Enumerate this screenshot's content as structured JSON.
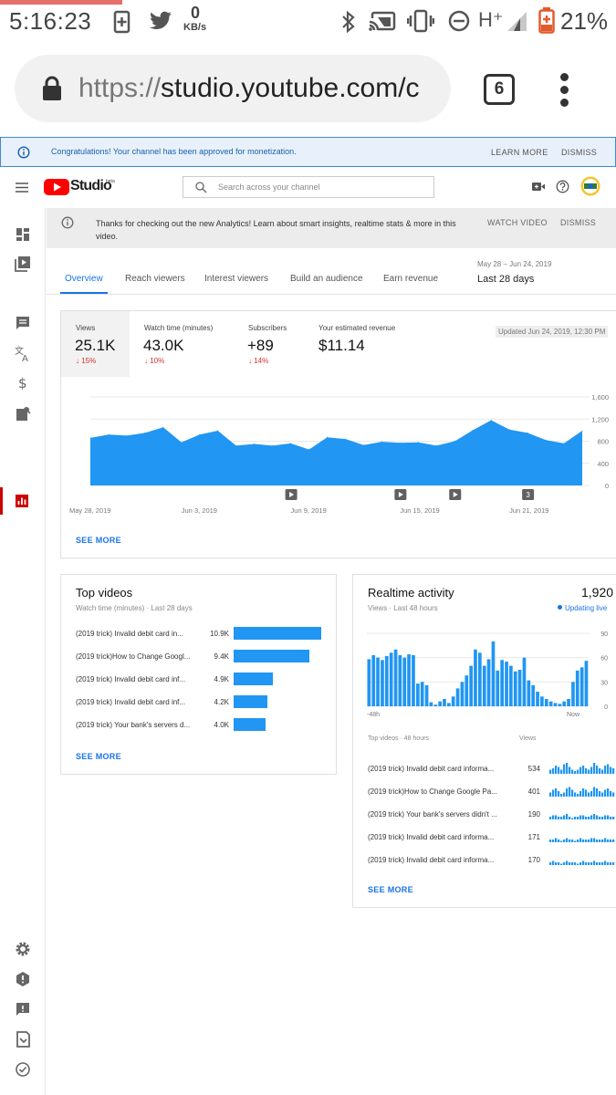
{
  "status_bar": {
    "time": "5:16:23",
    "net_speed_value": "0",
    "net_speed_unit": "KB/s",
    "network_type": "H⁺",
    "battery_percent": "21%"
  },
  "browser": {
    "url_scheme": "https://",
    "url_host": "studio.youtube.com/c",
    "tab_count": "6"
  },
  "banner": {
    "text": "Congratulations! Your channel has been approved for monetization.",
    "learn_more": "LEARN MORE",
    "dismiss": "DISMISS"
  },
  "header": {
    "logo_text": "Studio",
    "logo_badge": "beta",
    "search_placeholder": "Search across your channel"
  },
  "info_bar": {
    "text": "Thanks for checking out the new Analytics! Learn about smart insights, realtime stats & more in this video.",
    "watch_video": "WATCH VIDEO",
    "dismiss": "DISMISS"
  },
  "tabs": [
    "Overview",
    "Reach viewers",
    "Interest viewers",
    "Build an audience",
    "Earn revenue"
  ],
  "date_range": {
    "range": "May 28 – Jun 24, 2019",
    "label": "Last 28 days"
  },
  "overview": {
    "metrics": [
      {
        "label": "Views",
        "value": "25.1K",
        "change": "15%"
      },
      {
        "label": "Watch time (minutes)",
        "value": "43.0K",
        "change": "10%"
      },
      {
        "label": "Subscribers",
        "value": "+89",
        "change": "14%"
      },
      {
        "label": "Your estimated revenue",
        "value": "$11.14",
        "change": ""
      }
    ],
    "updated": "Updated Jun 24, 2019, 12:30 PM",
    "see_more": "SEE MORE",
    "marker_label": "3"
  },
  "chart_data": [
    {
      "type": "area",
      "title": "",
      "x": [
        "May 28, 2019",
        "May 29",
        "May 30",
        "May 31",
        "Jun 1",
        "Jun 2",
        "Jun 3, 2019",
        "Jun 4",
        "Jun 5",
        "Jun 6",
        "Jun 7",
        "Jun 8",
        "Jun 9, 2019",
        "Jun 10",
        "Jun 11",
        "Jun 12",
        "Jun 13",
        "Jun 14",
        "Jun 15, 2019",
        "Jun 16",
        "Jun 17",
        "Jun 18",
        "Jun 19",
        "Jun 20",
        "Jun 21, 2019",
        "Jun 22",
        "Jun 23",
        "Jun 24"
      ],
      "x_tick_labels": [
        "May 28, 2019",
        "Jun 3, 2019",
        "Jun 9, 2019",
        "Jun 15, 2019",
        "Jun 21, 2019"
      ],
      "series": [
        {
          "values": [
            860,
            920,
            900,
            950,
            1050,
            780,
            920,
            990,
            720,
            750,
            720,
            760,
            650,
            870,
            840,
            730,
            790,
            770,
            780,
            720,
            800,
            1000,
            1180,
            1010,
            950,
            820,
            760,
            990
          ]
        }
      ],
      "ylim": [
        0,
        1600
      ],
      "y_ticks": [
        "1,600",
        "1,200",
        "800",
        "400",
        "0"
      ],
      "grid": true
    },
    {
      "type": "bar",
      "title": "Top videos",
      "subtitle": "Watch time (minutes) · Last 28 days",
      "categories": [
        "(2019 trick) Invalid debit card in...",
        "(2019 trick)How to Change Googl...",
        "(2019 trick) Invalid debit card inf...",
        "(2019 trick) Invalid debit card inf...",
        "(2019 trick) Your bank's servers d..."
      ],
      "values": [
        10900,
        9400,
        4900,
        4200,
        4000
      ],
      "value_labels": [
        "10.9K",
        "9.4K",
        "4.9K",
        "4.2K",
        "4.0K"
      ]
    },
    {
      "type": "bar",
      "title": "Realtime activity",
      "subtitle": "Views · Last 48 hours",
      "values": [
        58,
        63,
        60,
        57,
        62,
        66,
        70,
        63,
        60,
        64,
        63,
        28,
        30,
        26,
        5,
        2,
        6,
        9,
        4,
        12,
        22,
        30,
        38,
        50,
        70,
        66,
        50,
        58,
        80,
        44,
        57,
        55,
        50,
        43,
        45,
        60,
        32,
        26,
        18,
        12,
        9,
        6,
        4,
        3,
        6,
        9,
        30,
        44,
        48,
        56
      ],
      "x_tick_labels": [
        "-48h",
        "Now"
      ],
      "ylim": [
        0,
        90
      ],
      "y_ticks": [
        "90",
        "60",
        "30",
        "0"
      ],
      "grid": true
    }
  ],
  "top_videos": {
    "title": "Top videos",
    "subtitle": "Watch time (minutes) · Last 28 days",
    "see_more": "SEE MORE"
  },
  "realtime": {
    "title": "Realtime activity",
    "total": "1,920",
    "subtitle": "Views · Last 48 hours",
    "status": "Updating live",
    "list_header": "Top videos · 48 hours",
    "list_views_header": "Views",
    "videos": [
      {
        "title": "(2019 trick) Invalid debit card informa...",
        "views": "534"
      },
      {
        "title": "(2019 trick)How to Change Google Pa...",
        "views": "401"
      },
      {
        "title": "(2019 trick) Your bank's servers didn't ...",
        "views": "190"
      },
      {
        "title": "(2019 trick) Invalid debit card informa...",
        "views": "171"
      },
      {
        "title": "(2019 trick) Invalid debit card informa...",
        "views": "170"
      }
    ],
    "see_more": "SEE MORE"
  },
  "colors": {
    "accent": "#1a73e8",
    "chart_blue": "#2196f3",
    "negative": "#d32f2f",
    "brand_red": "#ff0000"
  }
}
